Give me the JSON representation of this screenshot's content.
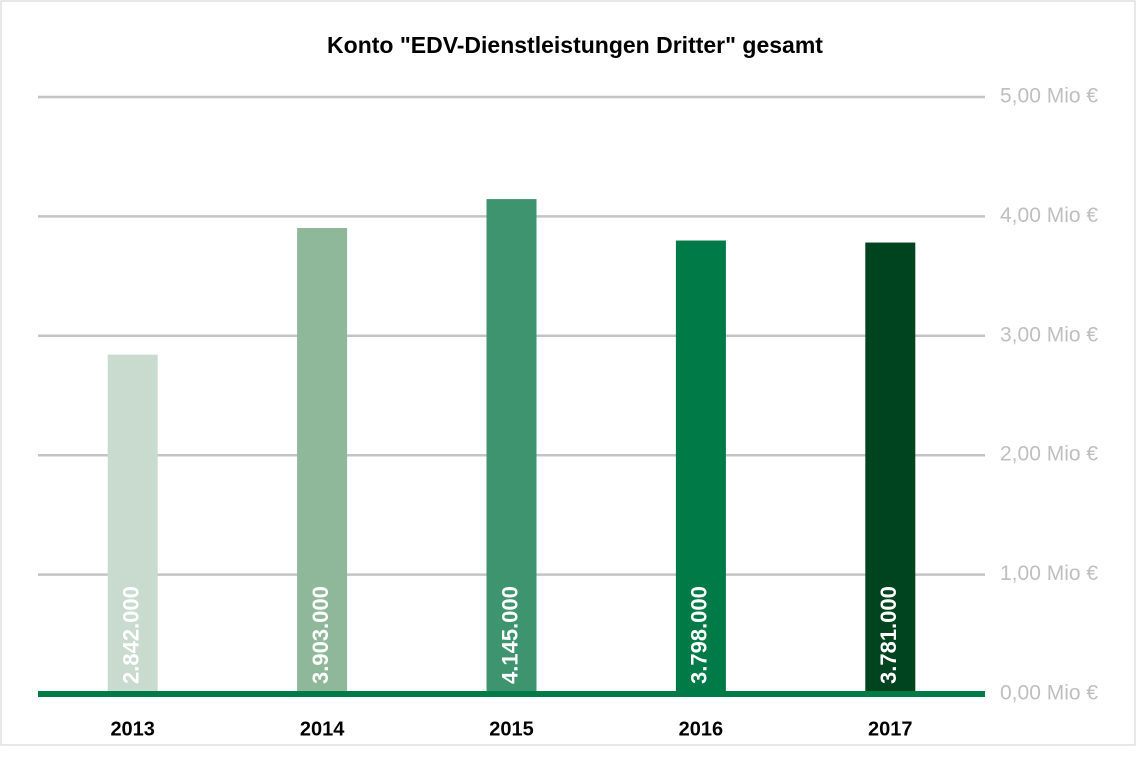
{
  "chart_data": {
    "type": "bar",
    "title": "Konto \"EDV-Dienstleistungen Dritter\" gesamt",
    "categories": [
      "2013",
      "2014",
      "2015",
      "2016",
      "2017"
    ],
    "values": [
      2.842,
      3.903,
      4.145,
      3.798,
      3.781
    ],
    "value_labels": [
      "2.842.000",
      "3.903.000",
      "4.145.000",
      "3.798.000",
      "3.781.000"
    ],
    "colors": [
      "#c9dbcf",
      "#8fb89a",
      "#3f9470",
      "#007a47",
      "#00441f"
    ],
    "ylim": [
      0,
      5
    ],
    "yticks": [
      {
        "value": 0,
        "label": "0,00 Mio €"
      },
      {
        "value": 1,
        "label": "1,00 Mio €"
      },
      {
        "value": 2,
        "label": "2,00 Mio €"
      },
      {
        "value": 3,
        "label": "3,00 Mio €"
      },
      {
        "value": 4,
        "label": "4,00 Mio €"
      },
      {
        "value": 5,
        "label": "5,00 Mio €"
      }
    ],
    "grid": true,
    "axis_color": "#007a47",
    "grid_color": "#c4c4c4"
  }
}
